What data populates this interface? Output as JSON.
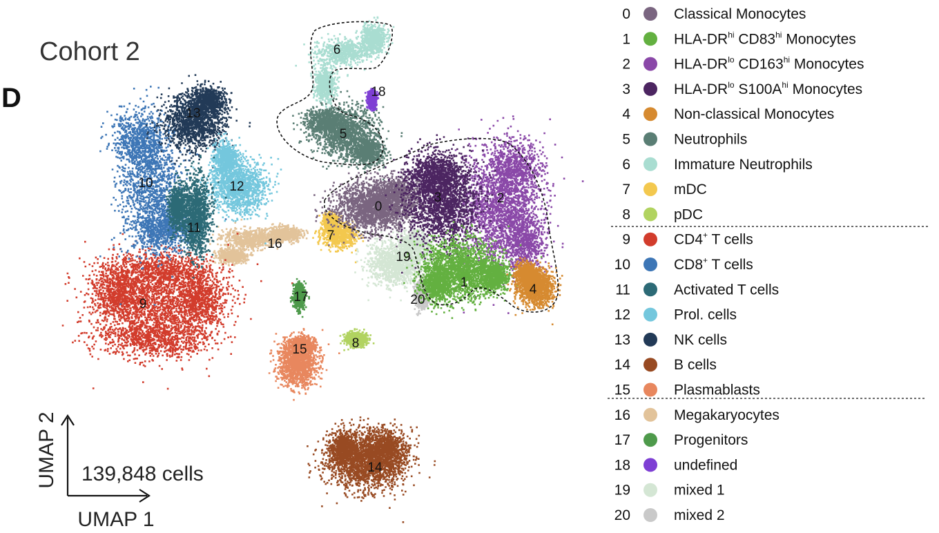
{
  "panel_label": "D",
  "cohort_title": "Cohort 2",
  "cell_count": "139,848 cells",
  "chart_data": {
    "type": "scatter",
    "title": "Cohort 2",
    "xlabel": "UMAP 1",
    "ylabel": "UMAP 2",
    "annotation": "139,848 cells",
    "legend_position": "right",
    "clusters": [
      {
        "id": "0",
        "name": "Classical Monocytes",
        "color": "#7a6580"
      },
      {
        "id": "1",
        "name": "HLA-DR hi CD83 hi Monocytes",
        "color": "#63b040"
      },
      {
        "id": "2",
        "name": "HLA-DR lo CD163 hi Monocytes",
        "color": "#8a48a8"
      },
      {
        "id": "3",
        "name": "HLA-DR lo S100A hi Monocytes",
        "color": "#4c2561"
      },
      {
        "id": "4",
        "name": "Non-classical Monocytes",
        "color": "#d68a30"
      },
      {
        "id": "5",
        "name": "Neutrophils",
        "color": "#5a7e74"
      },
      {
        "id": "6",
        "name": "Immature Neutrophils",
        "color": "#a9ddd1"
      },
      {
        "id": "7",
        "name": "mDC",
        "color": "#f3c84e"
      },
      {
        "id": "8",
        "name": "pDC",
        "color": "#b1d360"
      },
      {
        "id": "9",
        "name": "CD4+ T cells",
        "color": "#d23c2c"
      },
      {
        "id": "10",
        "name": "CD8+ T cells",
        "color": "#3d76b6"
      },
      {
        "id": "11",
        "name": "Activated T cells",
        "color": "#2c6a76"
      },
      {
        "id": "12",
        "name": "Prol. cells",
        "color": "#74c7dd"
      },
      {
        "id": "13",
        "name": "NK cells",
        "color": "#223a57"
      },
      {
        "id": "14",
        "name": "B cells",
        "color": "#984a22"
      },
      {
        "id": "15",
        "name": "Plasmablasts",
        "color": "#e8875e"
      },
      {
        "id": "16",
        "name": "Megakaryocytes",
        "color": "#e2c39a"
      },
      {
        "id": "17",
        "name": "Progenitors",
        "color": "#4e9a4b"
      },
      {
        "id": "18",
        "name": "undefined",
        "color": "#7e3fd4"
      },
      {
        "id": "19",
        "name": "mixed 1",
        "color": "#d4e6d4"
      },
      {
        "id": "20",
        "name": "mixed 2",
        "color": "#c9c9c9"
      }
    ],
    "legend_groups": [
      [
        "0",
        "1",
        "2",
        "3",
        "4",
        "5",
        "6",
        "7",
        "8"
      ],
      [
        "9",
        "10",
        "11",
        "12",
        "13",
        "14",
        "15"
      ],
      [
        "16",
        "17",
        "18",
        "19",
        "20"
      ]
    ]
  },
  "legend": [
    {
      "num": "0",
      "color": "#7a6580",
      "text": "Classical Monocytes"
    },
    {
      "num": "1",
      "color": "#63b040",
      "pre": "HLA-DR",
      "sup1": "hi",
      "mid": " CD83",
      "sup2": "hi",
      "post": " Monocytes"
    },
    {
      "num": "2",
      "color": "#8a48a8",
      "pre": "HLA-DR",
      "sup1": "lo",
      "mid": " CD163",
      "sup2": "hi",
      "post": " Monocytes"
    },
    {
      "num": "3",
      "color": "#4c2561",
      "pre": "HLA-DR",
      "sup1": "lo",
      "mid": " S100A",
      "sup2": "hi",
      "post": " Monocytes"
    },
    {
      "num": "4",
      "color": "#d68a30",
      "text": "Non-classical Monocytes"
    },
    {
      "num": "5",
      "color": "#5a7e74",
      "text": "Neutrophils"
    },
    {
      "num": "6",
      "color": "#a9ddd1",
      "text": "Immature Neutrophils"
    },
    {
      "num": "7",
      "color": "#f3c84e",
      "text": "mDC"
    },
    {
      "num": "8",
      "color": "#b1d360",
      "text": "pDC"
    },
    {
      "num": "9",
      "color": "#d23c2c",
      "pre": "CD4",
      "sup1": "+",
      "post": " T cells"
    },
    {
      "num": "10",
      "color": "#3d76b6",
      "pre": "CD8",
      "sup1": "+",
      "post": " T cells"
    },
    {
      "num": "11",
      "color": "#2c6a76",
      "text": "Activated T cells"
    },
    {
      "num": "12",
      "color": "#74c7dd",
      "text": "Prol. cells"
    },
    {
      "num": "13",
      "color": "#223a57",
      "text": "NK cells"
    },
    {
      "num": "14",
      "color": "#984a22",
      "text": "B cells"
    },
    {
      "num": "15",
      "color": "#e8875e",
      "text": "Plasmablasts"
    },
    {
      "num": "16",
      "color": "#e2c39a",
      "text": "Megakaryocytes"
    },
    {
      "num": "17",
      "color": "#4e9a4b",
      "text": "Progenitors"
    },
    {
      "num": "18",
      "color": "#7e3fd4",
      "text": "undefined"
    },
    {
      "num": "19",
      "color": "#d4e6d4",
      "text": "mixed 1"
    },
    {
      "num": "20",
      "color": "#c9c9c9",
      "text": "mixed 2"
    }
  ]
}
